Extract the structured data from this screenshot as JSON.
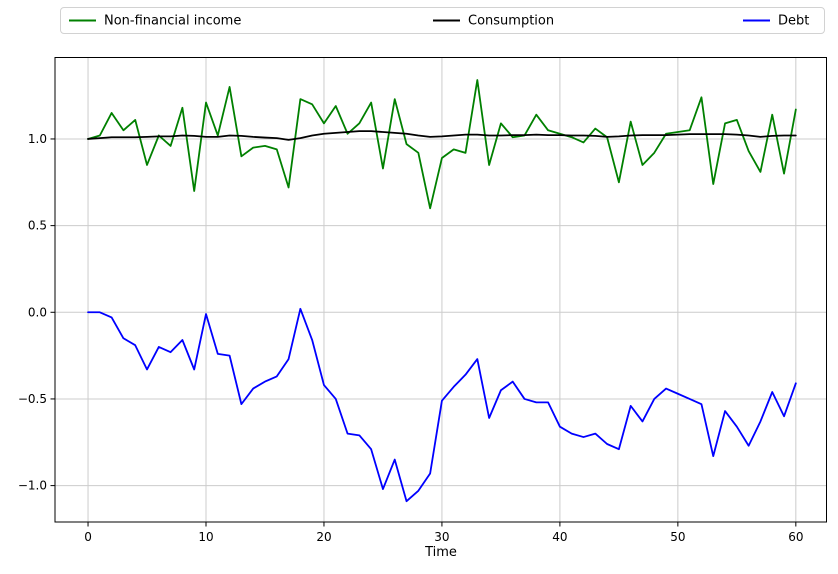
{
  "chart_data": {
    "type": "line",
    "title": "",
    "xlabel": "Time",
    "ylabel": "",
    "grid": true,
    "legend_position": "top",
    "xlim": [
      -2.8,
      62.6
    ],
    "ylim": [
      -1.21,
      1.47
    ],
    "x_ticks": [
      0,
      10,
      20,
      30,
      40,
      50,
      60
    ],
    "y_ticks": [
      1.0,
      0.5,
      0.0,
      -0.5,
      -1.0
    ],
    "y_tick_labels": [
      "1.0",
      "0.5",
      "0.0",
      "−0.5",
      "−1.0"
    ],
    "x": [
      0,
      1,
      2,
      3,
      4,
      5,
      6,
      7,
      8,
      9,
      10,
      11,
      12,
      13,
      14,
      15,
      16,
      17,
      18,
      19,
      20,
      21,
      22,
      23,
      24,
      25,
      26,
      27,
      28,
      29,
      30,
      31,
      32,
      33,
      34,
      35,
      36,
      37,
      38,
      39,
      40,
      41,
      42,
      43,
      44,
      45,
      46,
      47,
      48,
      49,
      50,
      51,
      52,
      53,
      54,
      55,
      56,
      57,
      58,
      59,
      60
    ],
    "series": [
      {
        "name": "Non-financial income",
        "color": "#008000",
        "values": [
          1.0,
          1.02,
          1.15,
          1.05,
          1.11,
          0.85,
          1.02,
          0.96,
          1.18,
          0.7,
          1.21,
          1.02,
          1.3,
          0.9,
          0.95,
          0.96,
          0.94,
          0.72,
          1.23,
          1.2,
          1.09,
          1.19,
          1.03,
          1.09,
          1.21,
          0.83,
          1.23,
          0.97,
          0.92,
          0.6,
          0.89,
          0.94,
          0.92,
          1.34,
          0.85,
          1.09,
          1.01,
          1.02,
          1.14,
          1.05,
          1.03,
          1.01,
          0.98,
          1.06,
          1.01,
          0.75,
          1.1,
          0.85,
          0.92,
          1.03,
          1.04,
          1.05,
          1.24,
          0.74,
          1.09,
          1.11,
          0.93,
          0.81,
          1.14,
          0.8,
          1.17
        ]
      },
      {
        "name": "Consumption",
        "color": "#000000",
        "values": [
          1.0,
          1.005,
          1.01,
          1.01,
          1.01,
          1.012,
          1.015,
          1.015,
          1.02,
          1.018,
          1.012,
          1.012,
          1.02,
          1.018,
          1.012,
          1.008,
          1.005,
          0.995,
          1.005,
          1.02,
          1.03,
          1.035,
          1.04,
          1.045,
          1.045,
          1.04,
          1.035,
          1.03,
          1.02,
          1.012,
          1.015,
          1.02,
          1.025,
          1.025,
          1.02,
          1.02,
          1.022,
          1.022,
          1.025,
          1.022,
          1.022,
          1.02,
          1.02,
          1.018,
          1.012,
          1.015,
          1.02,
          1.022,
          1.022,
          1.022,
          1.025,
          1.028,
          1.028,
          1.028,
          1.028,
          1.025,
          1.02,
          1.012,
          1.018,
          1.02,
          1.02
        ]
      },
      {
        "name": "Debt",
        "color": "#0000ff",
        "values": [
          0.0,
          0.0,
          -0.03,
          -0.15,
          -0.19,
          -0.33,
          -0.2,
          -0.23,
          -0.16,
          -0.33,
          -0.01,
          -0.24,
          -0.25,
          -0.53,
          -0.44,
          -0.4,
          -0.37,
          -0.27,
          0.02,
          -0.16,
          -0.42,
          -0.5,
          -0.7,
          -0.71,
          -0.79,
          -1.02,
          -0.85,
          -1.09,
          -1.03,
          -0.93,
          -0.51,
          -0.43,
          -0.36,
          -0.27,
          -0.61,
          -0.45,
          -0.4,
          -0.5,
          -0.52,
          -0.52,
          -0.66,
          -0.7,
          -0.72,
          -0.7,
          -0.76,
          -0.79,
          -0.54,
          -0.63,
          -0.5,
          -0.44,
          -0.47,
          -0.5,
          -0.53,
          -0.83,
          -0.57,
          -0.66,
          -0.77,
          -0.63,
          -0.46,
          -0.6,
          -0.41
        ]
      }
    ],
    "colors": {
      "grid": "#cccccc",
      "axis_border": "#000000",
      "background": "#ffffff"
    }
  }
}
